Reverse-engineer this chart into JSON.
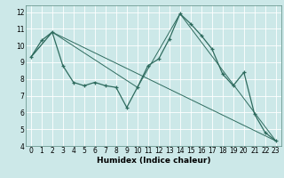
{
  "title": "",
  "xlabel": "Humidex (Indice chaleur)",
  "bg_color": "#cce8e8",
  "line_color": "#2e6b5e",
  "grid_color": "#b8d8d8",
  "xlim": [
    -0.5,
    23.5
  ],
  "ylim": [
    4,
    12.4
  ],
  "xticks": [
    0,
    1,
    2,
    3,
    4,
    5,
    6,
    7,
    8,
    9,
    10,
    11,
    12,
    13,
    14,
    15,
    16,
    17,
    18,
    19,
    20,
    21,
    22,
    23
  ],
  "yticks": [
    4,
    5,
    6,
    7,
    8,
    9,
    10,
    11,
    12
  ],
  "series1_x": [
    0,
    1,
    2,
    3,
    4,
    5,
    6,
    7,
    8,
    9,
    10,
    11,
    12,
    13,
    14,
    15,
    16,
    17,
    18,
    19,
    20,
    21,
    22,
    23
  ],
  "series1_y": [
    9.3,
    10.3,
    10.8,
    8.8,
    7.8,
    7.6,
    7.8,
    7.6,
    7.5,
    6.3,
    7.5,
    8.8,
    9.2,
    10.4,
    11.9,
    11.3,
    10.6,
    9.8,
    8.3,
    7.6,
    8.4,
    5.9,
    4.8,
    4.3
  ],
  "series2_x": [
    0,
    2,
    23
  ],
  "series2_y": [
    9.3,
    10.8,
    4.3
  ],
  "series3_x": [
    0,
    2,
    10,
    14,
    23
  ],
  "series3_y": [
    9.3,
    10.8,
    7.5,
    11.9,
    4.3
  ],
  "xlabel_fontsize": 6.5,
  "tick_fontsize": 5.5
}
